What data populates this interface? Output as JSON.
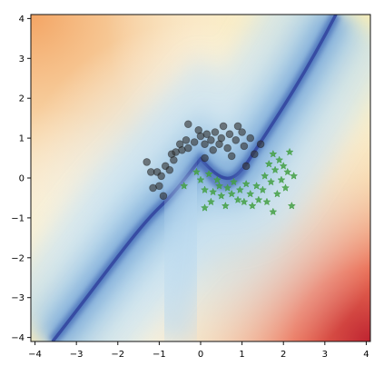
{
  "chart_data": {
    "type": "scatter",
    "title": "",
    "xlabel": "",
    "ylabel": "",
    "xlim": [
      -4.1,
      4.1
    ],
    "ylim": [
      -4.1,
      4.1
    ],
    "grid": false,
    "x_ticks": [
      -4,
      -3,
      -2,
      -1,
      0,
      1,
      2,
      3,
      4
    ],
    "y_ticks": [
      -4,
      -3,
      -2,
      -1,
      0,
      1,
      2,
      3,
      4
    ],
    "background": {
      "type": "heatmap",
      "extent": [
        -4,
        4,
        -4,
        4
      ],
      "colormap": "RdYlBu",
      "description_uncertainty_boundary": "dark-blue curved band along the decision boundary"
    },
    "series": [
      {
        "marker": "circle",
        "color": "#333333",
        "points": [
          [
            -1.3,
            0.4
          ],
          [
            -1.2,
            0.15
          ],
          [
            -1.05,
            0.15
          ],
          [
            -0.95,
            0.05
          ],
          [
            -0.85,
            0.3
          ],
          [
            -0.75,
            0.2
          ],
          [
            -0.7,
            0.6
          ],
          [
            -0.65,
            0.45
          ],
          [
            -0.6,
            0.65
          ],
          [
            -0.5,
            0.85
          ],
          [
            -0.45,
            0.7
          ],
          [
            -0.35,
            0.95
          ],
          [
            -0.3,
            0.75
          ],
          [
            -0.15,
            0.9
          ],
          [
            -0.05,
            1.2
          ],
          [
            0.0,
            1.05
          ],
          [
            0.1,
            0.85
          ],
          [
            0.15,
            1.1
          ],
          [
            0.25,
            0.95
          ],
          [
            0.3,
            0.7
          ],
          [
            0.35,
            1.15
          ],
          [
            0.45,
            0.85
          ],
          [
            0.5,
            1.0
          ],
          [
            0.55,
            1.3
          ],
          [
            0.65,
            0.75
          ],
          [
            0.7,
            1.1
          ],
          [
            0.75,
            0.55
          ],
          [
            0.85,
            0.95
          ],
          [
            0.9,
            1.3
          ],
          [
            1.0,
            1.15
          ],
          [
            1.05,
            0.8
          ],
          [
            1.1,
            0.3
          ],
          [
            1.2,
            1.0
          ],
          [
            1.3,
            0.6
          ],
          [
            1.45,
            0.85
          ],
          [
            -1.0,
            -0.2
          ],
          [
            -0.9,
            -0.45
          ],
          [
            -1.15,
            -0.25
          ],
          [
            -0.3,
            1.35
          ],
          [
            0.1,
            0.5
          ]
        ]
      },
      {
        "marker": "star",
        "color": "#44a044",
        "points": [
          [
            -0.4,
            -0.2
          ],
          [
            -0.1,
            0.15
          ],
          [
            0.0,
            -0.05
          ],
          [
            0.1,
            -0.3
          ],
          [
            0.2,
            0.1
          ],
          [
            0.25,
            -0.6
          ],
          [
            0.3,
            -0.35
          ],
          [
            0.4,
            -0.05
          ],
          [
            0.45,
            -0.2
          ],
          [
            0.5,
            -0.45
          ],
          [
            0.6,
            -0.7
          ],
          [
            0.65,
            -0.25
          ],
          [
            0.75,
            -0.4
          ],
          [
            0.8,
            -0.1
          ],
          [
            0.9,
            -0.55
          ],
          [
            0.95,
            -0.3
          ],
          [
            1.05,
            -0.6
          ],
          [
            1.1,
            -0.15
          ],
          [
            1.2,
            -0.4
          ],
          [
            1.25,
            -0.7
          ],
          [
            1.35,
            -0.2
          ],
          [
            1.4,
            -0.55
          ],
          [
            1.5,
            -0.3
          ],
          [
            1.55,
            0.05
          ],
          [
            1.6,
            -0.6
          ],
          [
            1.65,
            0.35
          ],
          [
            1.7,
            -0.1
          ],
          [
            1.75,
            0.6
          ],
          [
            1.8,
            0.2
          ],
          [
            1.85,
            -0.4
          ],
          [
            1.9,
            0.45
          ],
          [
            1.95,
            -0.05
          ],
          [
            2.0,
            0.3
          ],
          [
            2.05,
            -0.25
          ],
          [
            2.1,
            0.15
          ],
          [
            2.15,
            0.65
          ],
          [
            2.2,
            -0.7
          ],
          [
            2.25,
            0.05
          ],
          [
            0.1,
            -0.75
          ],
          [
            1.75,
            -0.85
          ]
        ]
      }
    ]
  }
}
